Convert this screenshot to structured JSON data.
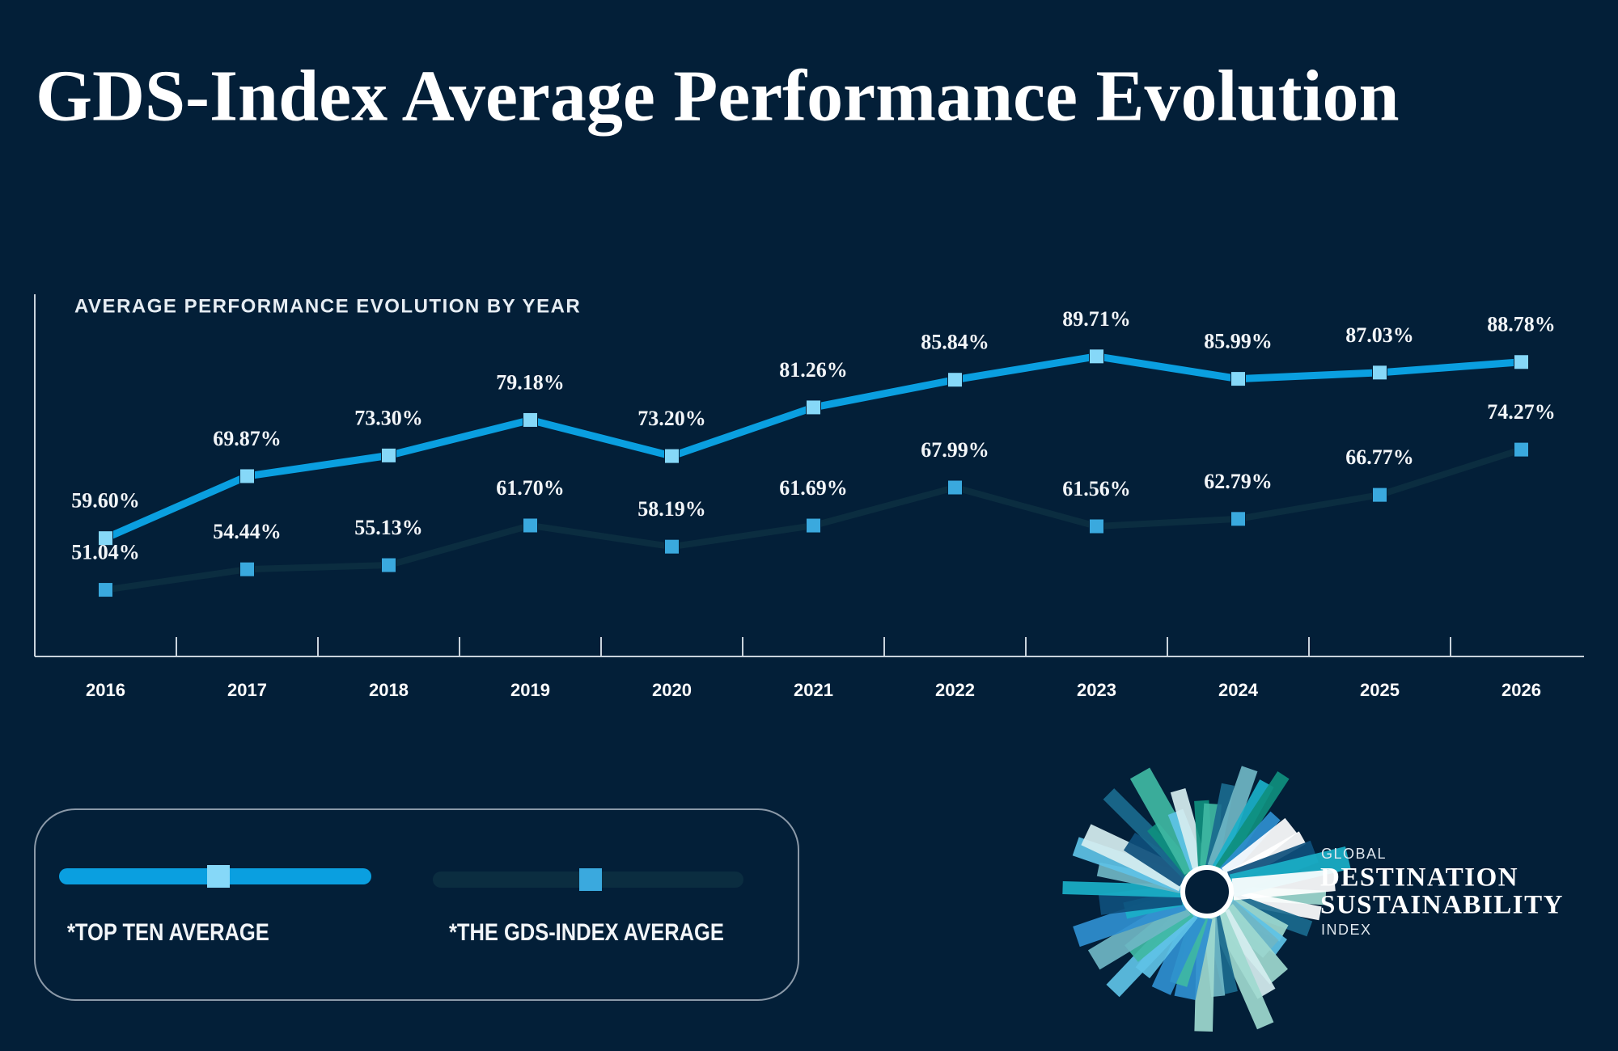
{
  "chart_data": {
    "type": "line",
    "title": "GDS-Index Average Performance Evolution",
    "subtitle": "AVERAGE PERFORMANCE EVOLUTION BY YEAR",
    "categories": [
      "2016",
      "2017",
      "2018",
      "2019",
      "2020",
      "2021",
      "2022",
      "2023",
      "2024",
      "2025",
      "2026"
    ],
    "series": [
      {
        "name": "*TOP TEN AVERAGE",
        "color": "#0a9fe0",
        "marker_color": "#86d8f8",
        "values": [
          59.6,
          69.87,
          73.3,
          79.18,
          73.2,
          81.26,
          85.84,
          89.71,
          85.99,
          87.03,
          88.78
        ],
        "value_labels": [
          "59.60%",
          "69.87%",
          "73.30%",
          "79.18%",
          "73.20%",
          "81.26%",
          "85.84%",
          "89.71%",
          "85.99%",
          "87.03%",
          "88.78%"
        ]
      },
      {
        "name": "*THE GDS-INDEX AVERAGE",
        "color": "#0b2d40",
        "marker_color": "#3aa9de",
        "values": [
          51.04,
          54.44,
          55.13,
          61.7,
          58.19,
          61.69,
          67.99,
          61.56,
          62.79,
          66.77,
          74.27
        ],
        "value_labels": [
          "51.04%",
          "54.44%",
          "55.13%",
          "61.70%",
          "58.19%",
          "61.69%",
          "67.99%",
          "61.56%",
          "62.79%",
          "66.77%",
          "74.27%"
        ]
      }
    ],
    "ylim": [
      40,
      100
    ]
  },
  "logo": {
    "lines": [
      "GLOBAL",
      "DESTINATION",
      "SUSTAINABILITY",
      "INDEX"
    ]
  }
}
